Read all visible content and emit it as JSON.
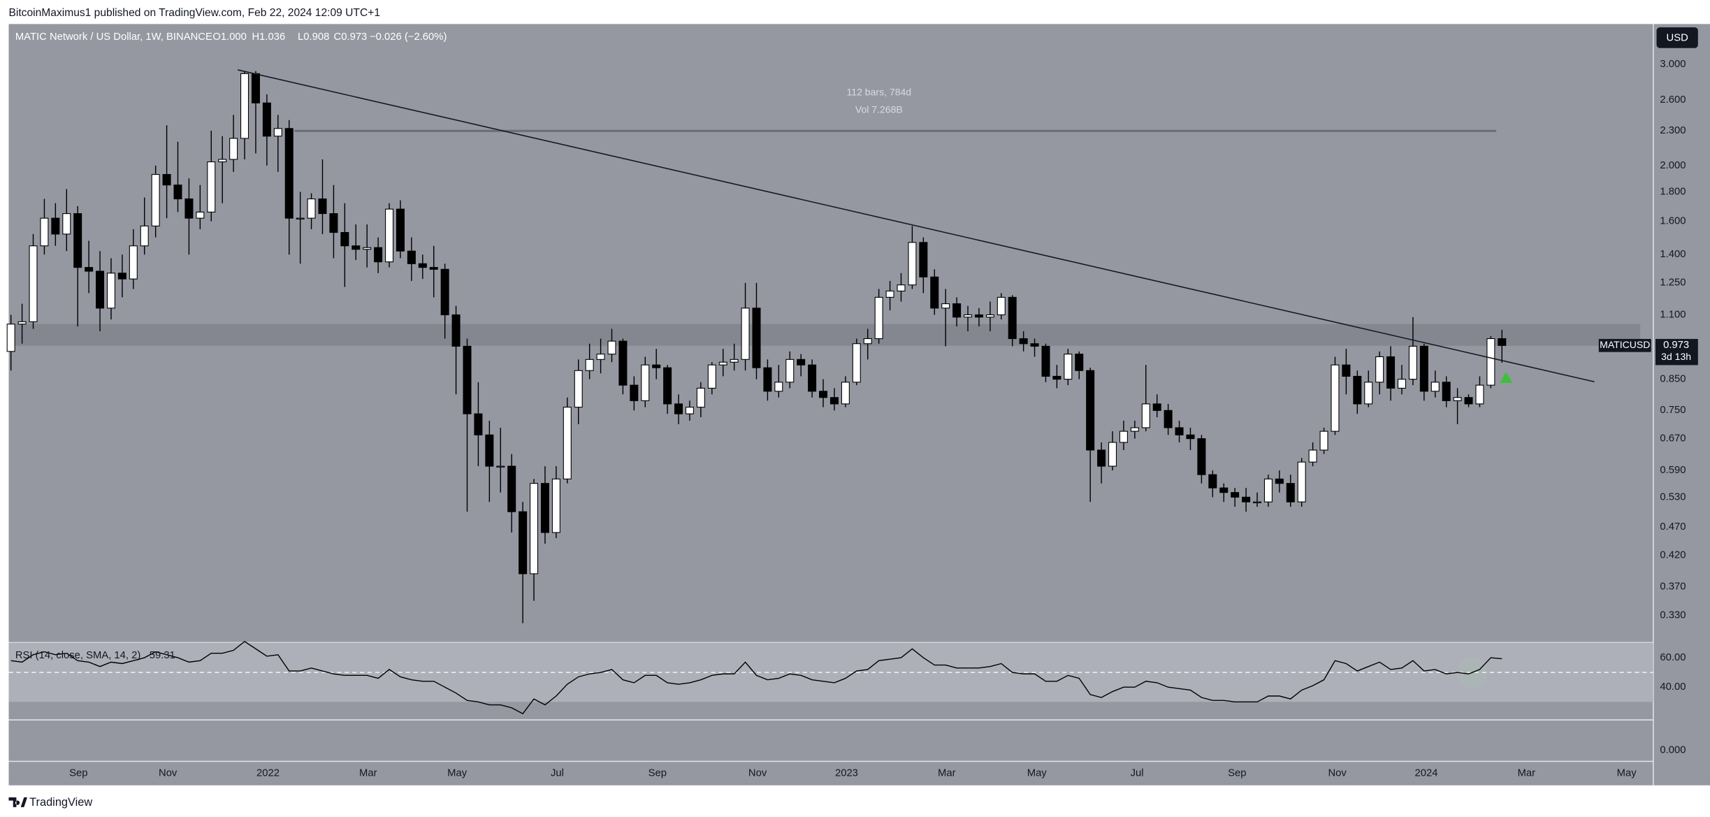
{
  "header": {
    "publisher": "BitcoinMaximus1 published on TradingView.com, Feb 22, 2024 12:09 UTC+1",
    "currency": "USD",
    "footer": "TradingView"
  },
  "legend": {
    "symbol": "MATIC Network / US Dollar, 1W, BINANCE",
    "open": "O1.000",
    "high": "H1.036",
    "low": "L0.908",
    "close": "C0.973",
    "change": "−0.026 (−2.60%)"
  },
  "annotations": {
    "bars": "112 bars, 784d",
    "volume": "Vol 7.268B"
  },
  "lower_pane": {
    "tick_label": "0.000"
  },
  "chart_data": [
    {
      "type": "candlestick",
      "ticker": "MATICUSD",
      "countdown": "3d 13h",
      "up_color": "#ffffff",
      "down_color": "#000000",
      "wick_color": "#000000",
      "yscale": "log",
      "ylim": [
        0.2975,
        3.525
      ],
      "yticks": [
        {
          "value": 3.0,
          "label": "3.000"
        },
        {
          "value": 2.6,
          "label": "2.600"
        },
        {
          "value": 2.3,
          "label": "2.300"
        },
        {
          "value": 2.0,
          "label": "2.000"
        },
        {
          "value": 1.8,
          "label": "1.800"
        },
        {
          "value": 1.6,
          "label": "1.600"
        },
        {
          "value": 1.4,
          "label": "1.400"
        },
        {
          "value": 1.25,
          "label": "1.250"
        },
        {
          "value": 1.1,
          "label": "1.100"
        },
        {
          "value": 0.85,
          "label": "0.850"
        },
        {
          "value": 0.75,
          "label": "0.750"
        },
        {
          "value": 0.67,
          "label": "0.670"
        },
        {
          "value": 0.59,
          "label": "0.590"
        },
        {
          "value": 0.53,
          "label": "0.530"
        },
        {
          "value": 0.47,
          "label": "0.470"
        },
        {
          "value": 0.42,
          "label": "0.420"
        },
        {
          "value": 0.37,
          "label": "0.370"
        },
        {
          "value": 0.33,
          "label": "0.330"
        }
      ],
      "xlim": [
        -0.2,
        147.6
      ],
      "xticks": [
        {
          "value": 6.07,
          "label": "Sep"
        },
        {
          "value": 14.1,
          "label": "Nov"
        },
        {
          "value": 23.1,
          "label": "2022"
        },
        {
          "value": 32.1,
          "label": "Mar"
        },
        {
          "value": 40.1,
          "label": "May"
        },
        {
          "value": 49.1,
          "label": "Jul"
        },
        {
          "value": 58.1,
          "label": "Sep"
        },
        {
          "value": 67.1,
          "label": "Nov"
        },
        {
          "value": 75.1,
          "label": "2023"
        },
        {
          "value": 84.1,
          "label": "Mar"
        },
        {
          "value": 92.2,
          "label": "May"
        },
        {
          "value": 101.2,
          "label": "Jul"
        },
        {
          "value": 110.2,
          "label": "Sep"
        },
        {
          "value": 119.2,
          "label": "Nov"
        },
        {
          "value": 127.2,
          "label": "2024"
        },
        {
          "value": 136.2,
          "label": "Mar"
        },
        {
          "value": 145.2,
          "label": "May"
        }
      ],
      "open": [
        0.95,
        1.06,
        1.07,
        1.45,
        1.62,
        1.52,
        1.65,
        1.33,
        1.31,
        1.13,
        1.3,
        1.27,
        1.45,
        1.57,
        1.93,
        1.85,
        1.75,
        1.62,
        1.66,
        2.03,
        2.05,
        2.23,
        2.89,
        2.57,
        2.25,
        2.32,
        1.62,
        1.62,
        1.75,
        1.65,
        1.53,
        1.45,
        1.43,
        1.44,
        1.36,
        1.68,
        1.42,
        1.35,
        1.33,
        1.32,
        1.1,
        0.97,
        0.74,
        0.68,
        0.6,
        0.6,
        0.5,
        0.39,
        0.56,
        0.46,
        0.57,
        0.76,
        0.88,
        0.92,
        0.94,
        0.99,
        0.83,
        0.78,
        0.9,
        0.89,
        0.77,
        0.74,
        0.76,
        0.82,
        0.9,
        0.91,
        0.92,
        1.13,
        0.89,
        0.81,
        0.84,
        0.92,
        0.9,
        0.81,
        0.79,
        0.77,
        0.84,
        0.98,
        1.0,
        1.18,
        1.21,
        1.24,
        1.47,
        1.28,
        1.13,
        1.15,
        1.09,
        1.1,
        1.09,
        1.1,
        1.18,
        1.0,
        0.98,
        0.97,
        0.86,
        0.85,
        0.94,
        0.88,
        0.64,
        0.6,
        0.66,
        0.69,
        0.7,
        0.77,
        0.75,
        0.7,
        0.68,
        0.67,
        0.58,
        0.55,
        0.54,
        0.53,
        0.52,
        0.52,
        0.57,
        0.56,
        0.52,
        0.61,
        0.64,
        0.69,
        0.9,
        0.86,
        0.77,
        0.84,
        0.93,
        0.82,
        0.85,
        0.97,
        0.81,
        0.84,
        0.78,
        0.79,
        0.77,
        0.83,
        1.0
      ],
      "high": [
        1.1,
        1.15,
        1.52,
        1.75,
        1.72,
        1.82,
        1.7,
        1.48,
        1.42,
        1.38,
        1.4,
        1.55,
        1.76,
        2.0,
        2.35,
        2.2,
        1.9,
        1.85,
        2.3,
        2.25,
        2.45,
        2.92,
        2.92,
        2.66,
        2.45,
        2.4,
        1.8,
        1.79,
        2.05,
        1.85,
        1.72,
        1.58,
        1.58,
        1.5,
        1.72,
        1.74,
        1.5,
        1.4,
        1.45,
        1.35,
        1.14,
        1.0,
        0.84,
        0.72,
        0.7,
        0.63,
        0.52,
        0.57,
        0.6,
        0.6,
        0.79,
        0.92,
        0.98,
        1.0,
        1.04,
        1.0,
        0.86,
        0.93,
        0.96,
        0.9,
        0.8,
        0.78,
        0.84,
        0.91,
        0.96,
        0.98,
        1.25,
        1.25,
        0.92,
        0.9,
        0.95,
        0.94,
        0.92,
        0.85,
        0.82,
        0.86,
        1.0,
        1.04,
        1.22,
        1.26,
        1.3,
        1.57,
        1.5,
        1.32,
        1.22,
        1.18,
        1.14,
        1.13,
        1.16,
        1.2,
        1.19,
        1.03,
        1.0,
        0.98,
        0.9,
        0.96,
        0.95,
        0.89,
        0.66,
        0.69,
        0.72,
        0.72,
        0.9,
        0.8,
        0.77,
        0.72,
        0.7,
        0.68,
        0.59,
        0.56,
        0.55,
        0.55,
        0.54,
        0.58,
        0.59,
        0.58,
        0.62,
        0.66,
        0.7,
        0.93,
        0.96,
        0.88,
        0.88,
        0.95,
        0.97,
        0.9,
        1.09,
        0.98,
        0.88,
        0.86,
        0.82,
        0.8,
        0.86,
        1.01,
        1.036
      ],
      "low": [
        0.88,
        0.98,
        1.04,
        1.4,
        1.45,
        1.42,
        1.05,
        1.2,
        1.03,
        1.08,
        1.18,
        1.22,
        1.4,
        1.5,
        1.62,
        1.66,
        1.4,
        1.55,
        1.6,
        1.72,
        1.95,
        2.05,
        2.1,
        2.0,
        1.95,
        1.4,
        1.35,
        1.55,
        1.52,
        1.38,
        1.23,
        1.37,
        1.33,
        1.3,
        1.33,
        1.38,
        1.26,
        1.27,
        1.18,
        1.0,
        0.8,
        0.5,
        0.6,
        0.52,
        0.54,
        0.46,
        0.32,
        0.35,
        0.44,
        0.45,
        0.56,
        0.71,
        0.85,
        0.87,
        0.91,
        0.8,
        0.75,
        0.76,
        0.85,
        0.74,
        0.71,
        0.72,
        0.73,
        0.8,
        0.86,
        0.88,
        0.88,
        0.85,
        0.78,
        0.79,
        0.82,
        0.86,
        0.79,
        0.76,
        0.75,
        0.76,
        0.83,
        0.92,
        0.98,
        1.12,
        1.16,
        1.22,
        1.2,
        1.1,
        0.97,
        1.05,
        1.03,
        1.05,
        1.03,
        1.08,
        0.97,
        0.95,
        0.93,
        0.84,
        0.82,
        0.83,
        0.85,
        0.52,
        0.56,
        0.59,
        0.64,
        0.67,
        0.69,
        0.73,
        0.68,
        0.66,
        0.64,
        0.56,
        0.53,
        0.52,
        0.51,
        0.5,
        0.51,
        0.51,
        0.54,
        0.51,
        0.51,
        0.6,
        0.63,
        0.68,
        0.8,
        0.74,
        0.76,
        0.8,
        0.78,
        0.8,
        0.83,
        0.78,
        0.79,
        0.76,
        0.71,
        0.76,
        0.76,
        0.82,
        0.908
      ],
      "close": [
        1.06,
        1.07,
        1.45,
        1.62,
        1.52,
        1.65,
        1.33,
        1.31,
        1.13,
        1.3,
        1.27,
        1.45,
        1.57,
        1.93,
        1.85,
        1.75,
        1.62,
        1.66,
        2.03,
        2.05,
        2.23,
        2.89,
        2.57,
        2.25,
        2.32,
        1.62,
        1.62,
        1.75,
        1.65,
        1.53,
        1.45,
        1.43,
        1.44,
        1.36,
        1.68,
        1.42,
        1.35,
        1.33,
        1.32,
        1.1,
        0.97,
        0.74,
        0.68,
        0.6,
        0.6,
        0.5,
        0.39,
        0.56,
        0.46,
        0.57,
        0.76,
        0.88,
        0.92,
        0.94,
        0.99,
        0.83,
        0.78,
        0.9,
        0.89,
        0.77,
        0.74,
        0.76,
        0.82,
        0.9,
        0.91,
        0.92,
        1.13,
        0.89,
        0.81,
        0.84,
        0.92,
        0.9,
        0.81,
        0.79,
        0.77,
        0.84,
        0.98,
        1.0,
        1.18,
        1.21,
        1.24,
        1.47,
        1.28,
        1.13,
        1.15,
        1.09,
        1.1,
        1.09,
        1.1,
        1.18,
        1.0,
        0.98,
        0.97,
        0.86,
        0.85,
        0.94,
        0.88,
        0.64,
        0.6,
        0.66,
        0.69,
        0.7,
        0.77,
        0.75,
        0.7,
        0.68,
        0.67,
        0.58,
        0.55,
        0.54,
        0.53,
        0.52,
        0.52,
        0.57,
        0.56,
        0.52,
        0.61,
        0.64,
        0.69,
        0.9,
        0.86,
        0.77,
        0.84,
        0.93,
        0.82,
        0.85,
        0.97,
        0.81,
        0.84,
        0.78,
        0.79,
        0.77,
        0.83,
        1.0,
        0.973
      ]
    },
    {
      "type": "line",
      "title": "RSI (14, close, SMA, 14, 2)",
      "color": "#000000",
      "band": [
        30,
        70
      ],
      "band_color": "#b4b7bf",
      "midline": 50,
      "ylim": [
        17.8,
        69.6
      ],
      "yticks": [
        {
          "value": 60,
          "label": "60.00"
        },
        {
          "value": 40,
          "label": "40.00"
        }
      ],
      "values": [
        58,
        57,
        62,
        64,
        62,
        63,
        58,
        57,
        54,
        57,
        56,
        58,
        60,
        64,
        62,
        60,
        57,
        58,
        63,
        63,
        65,
        71,
        66,
        61,
        62,
        51,
        51,
        53,
        51,
        49,
        48,
        48,
        48,
        46,
        52,
        47,
        45,
        44,
        44,
        40,
        36,
        31,
        30,
        28,
        28,
        26,
        22,
        32,
        28,
        34,
        42,
        47,
        49,
        50,
        52,
        45,
        43,
        48,
        48,
        43,
        42,
        43,
        45,
        48,
        49,
        49,
        57,
        48,
        45,
        46,
        49,
        48,
        45,
        44,
        43,
        46,
        51,
        52,
        58,
        59,
        60,
        66,
        60,
        55,
        55,
        53,
        53,
        53,
        54,
        56,
        50,
        49,
        49,
        44,
        44,
        48,
        46,
        35,
        33,
        37,
        40,
        40,
        44,
        43,
        40,
        39,
        38,
        33,
        31,
        31,
        30,
        30,
        30,
        34,
        34,
        32,
        38,
        41,
        45,
        58,
        56,
        51,
        54,
        57,
        52,
        53,
        58,
        51,
        52,
        49,
        50,
        49,
        52,
        60,
        59.31
      ]
    }
  ]
}
